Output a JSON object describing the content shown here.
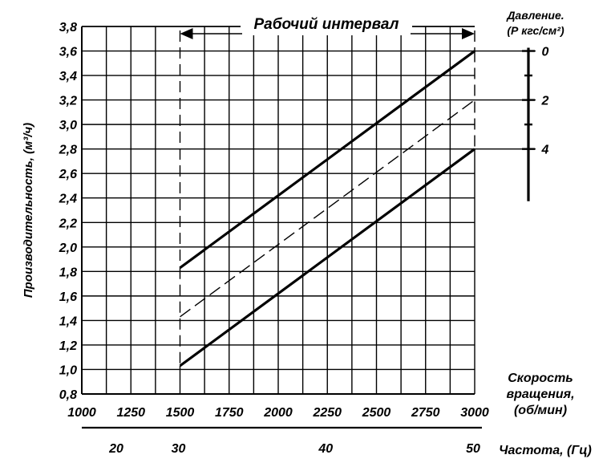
{
  "chart_data": {
    "type": "line",
    "ylabel": "Производительность, (м³/ч)",
    "xlabel": [
      "Скорость",
      "вращения,",
      "(об/мин)"
    ],
    "x2label": "Частота, (Гц)",
    "pressure_label": [
      "Давление.",
      "(Р кгс/см²)"
    ],
    "interval_label": "Рабочий интервал",
    "xlim": [
      1000,
      3000
    ],
    "ylim": [
      0.8,
      3.8
    ],
    "x_minor_step": 125,
    "y_step": 0.2,
    "x_ticks": [
      "1000",
      "1250",
      "1500",
      "1750",
      "2000",
      "2250",
      "2500",
      "2750",
      "3000"
    ],
    "y_ticks": [
      "0,8",
      "1,0",
      "1,2",
      "1,4",
      "1,6",
      "1,8",
      "2,0",
      "2,2",
      "2,4",
      "2,6",
      "2,8",
      "3,0",
      "3,2",
      "3,4",
      "3,6",
      "3,8"
    ],
    "freq_ticks": [
      {
        "label": "20",
        "rpm": 1000
      },
      {
        "label": "30",
        "rpm": 1500
      },
      {
        "label": "40",
        "rpm": 2250
      },
      {
        "label": "50",
        "rpm": 3000
      }
    ],
    "working_interval": [
      1500,
      3000
    ],
    "series": [
      {
        "style": "solid",
        "x": [
          1500,
          3000
        ],
        "y": [
          1.83,
          3.6
        ]
      },
      {
        "style": "dashed",
        "x": [
          1500,
          3000
        ],
        "y": [
          1.43,
          3.2
        ]
      },
      {
        "style": "solid",
        "x": [
          1500,
          3000
        ],
        "y": [
          1.03,
          2.8
        ]
      }
    ],
    "pressure_scale": [
      {
        "label": "0",
        "y": 3.6
      },
      {
        "label": "2",
        "y": 3.2
      },
      {
        "label": "4",
        "y": 2.8
      }
    ],
    "pressure_minor": [
      3.4,
      3.0
    ]
  }
}
